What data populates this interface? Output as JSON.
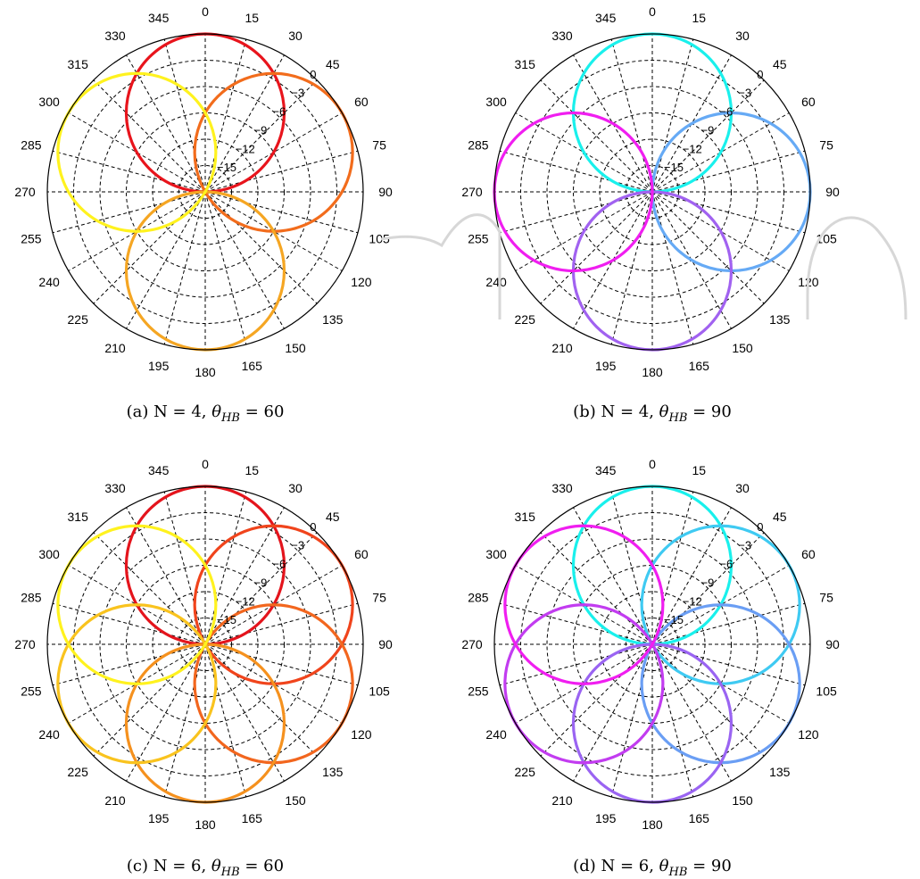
{
  "chart_data": [
    {
      "type": "polar",
      "caption": {
        "label": "(a)",
        "text": "N = 4, ",
        "symbol": "θ",
        "sub": "HB",
        "rest": " = 60"
      },
      "angle_ticks": [
        "0",
        "15",
        "30",
        "45",
        "60",
        "75",
        "90",
        "105",
        "120",
        "135",
        "150",
        "165",
        "180",
        "195",
        "210",
        "225",
        "240",
        "255",
        "270",
        "285",
        "300",
        "315",
        "330",
        "345"
      ],
      "radial_ticks": [
        "0",
        "−3",
        "−6",
        "−9",
        "−12",
        "−15"
      ],
      "radial_db_range": [
        -15,
        0
      ],
      "beam_angles_deg": [
        0,
        60,
        180,
        300
      ],
      "beam_colors": [
        "#e8141c",
        "#f26c1c",
        "#f5a623",
        "#fff21e"
      ],
      "grid": "dashed"
    },
    {
      "type": "polar",
      "caption": {
        "label": "(b)",
        "text": "N = 4, ",
        "symbol": "θ",
        "sub": "HB",
        "rest": " = 90"
      },
      "angle_ticks": [
        "0",
        "15",
        "30",
        "45",
        "60",
        "75",
        "90",
        "105",
        "120",
        "135",
        "150",
        "165",
        "180",
        "195",
        "210",
        "225",
        "240",
        "255",
        "270",
        "285",
        "300",
        "315",
        "330",
        "345"
      ],
      "radial_ticks": [
        "0",
        "−3",
        "−6",
        "−9",
        "−12",
        "−15"
      ],
      "radial_db_range": [
        -15,
        0
      ],
      "beam_angles_deg": [
        0,
        90,
        180,
        270
      ],
      "beam_colors": [
        "#19f0ec",
        "#66aaf5",
        "#a162f0",
        "#f01ef0"
      ],
      "grid": "dashed"
    },
    {
      "type": "polar",
      "caption": {
        "label": "(c)",
        "text": "N = 6, ",
        "symbol": "θ",
        "sub": "HB",
        "rest": " = 60"
      },
      "angle_ticks": [
        "0",
        "15",
        "30",
        "45",
        "60",
        "75",
        "90",
        "105",
        "120",
        "135",
        "150",
        "165",
        "180",
        "195",
        "210",
        "225",
        "240",
        "255",
        "270",
        "285",
        "300",
        "315",
        "330",
        "345"
      ],
      "radial_ticks": [
        "0",
        "−3",
        "−6",
        "−9",
        "−12",
        "−15"
      ],
      "radial_db_range": [
        -15,
        0
      ],
      "beam_angles_deg": [
        0,
        60,
        120,
        180,
        240,
        300
      ],
      "beam_colors": [
        "#e4141c",
        "#f0441c",
        "#f2661e",
        "#f5911e",
        "#f9c31e",
        "#fff21e"
      ],
      "grid": "dashed"
    },
    {
      "type": "polar",
      "caption": {
        "label": "(d)",
        "text": "N = 6, ",
        "symbol": "θ",
        "sub": "HB",
        "rest": " = 90"
      },
      "angle_ticks": [
        "0",
        "15",
        "30",
        "45",
        "60",
        "75",
        "90",
        "105",
        "120",
        "135",
        "150",
        "165",
        "180",
        "195",
        "210",
        "225",
        "240",
        "255",
        "270",
        "285",
        "300",
        "315",
        "330",
        "345"
      ],
      "radial_ticks": [
        "0",
        "−3",
        "−6",
        "−9",
        "−12",
        "−15"
      ],
      "radial_db_range": [
        -15,
        0
      ],
      "beam_angles_deg": [
        0,
        60,
        120,
        180,
        240,
        300
      ],
      "beam_colors": [
        "#19f0ec",
        "#3fcaf2",
        "#6a9ef4",
        "#9a64f2",
        "#c23cf0",
        "#f01ef0"
      ],
      "grid": "dashed"
    }
  ]
}
